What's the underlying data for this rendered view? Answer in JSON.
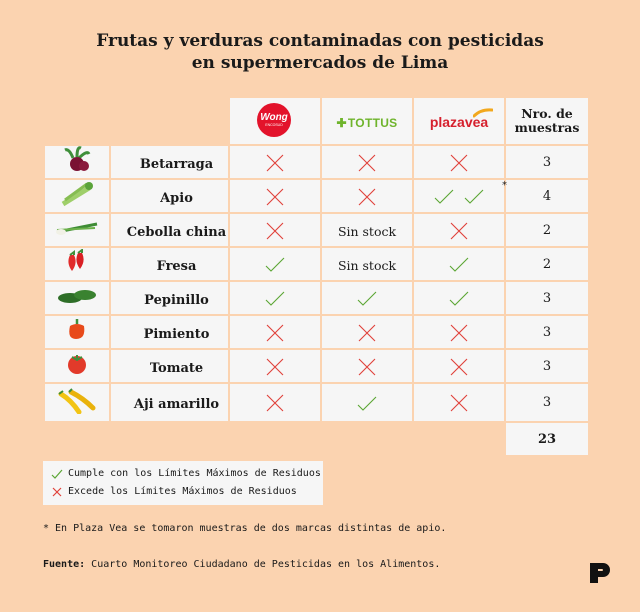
{
  "title": {
    "line1": "Frutas y verduras contaminadas con pesticidas",
    "line2": "en supermercados de Lima"
  },
  "table": {
    "stores": [
      {
        "name": "Wong",
        "logo_text": "Wong",
        "logo_sub": "ENCOSUD"
      },
      {
        "name": "Tottus",
        "logo_text": "TOTTUS"
      },
      {
        "name": "Plaza Vea",
        "logo_text": "plazavea"
      }
    ],
    "count_header_line1": "Nro. de",
    "count_header_line2": "muestras",
    "rows": [
      {
        "product": "Betarraga",
        "icon": "beet-icon",
        "wong": "x",
        "tottus": "x",
        "plazavea": "x",
        "count": "3"
      },
      {
        "product": "Apio",
        "icon": "celery-icon",
        "wong": "x",
        "tottus": "x",
        "plazavea": "check2",
        "count": "4",
        "star": "*"
      },
      {
        "product": "Cebolla china",
        "icon": "green-onion-icon",
        "wong": "x",
        "tottus": "Sin stock",
        "plazavea": "x",
        "count": "2"
      },
      {
        "product": "Fresa",
        "icon": "strawberry-icon",
        "wong": "check",
        "tottus": "Sin stock",
        "plazavea": "check",
        "count": "2"
      },
      {
        "product": "Pepinillo",
        "icon": "cucumber-icon",
        "wong": "check",
        "tottus": "check",
        "plazavea": "check",
        "count": "3"
      },
      {
        "product": "Pimiento",
        "icon": "bell-pepper-icon",
        "wong": "x",
        "tottus": "x",
        "plazavea": "x",
        "count": "3"
      },
      {
        "product": "Tomate",
        "icon": "tomato-icon",
        "wong": "x",
        "tottus": "x",
        "plazavea": "x",
        "count": "3"
      },
      {
        "product": "Aji amarillo",
        "icon": "yellow-chili-icon",
        "wong": "x",
        "tottus": "check",
        "plazavea": "x",
        "count": "3"
      }
    ],
    "total": "23"
  },
  "legend": {
    "check_label": "Cumple con los Límites Máximos de Residuos",
    "x_label": "Excede los Límites Máximos de Residuos"
  },
  "note": "* En Plaza Vea se tomaron muestras de dos marcas distintas de apio.",
  "source": {
    "label": "Fuente:",
    "text": " Cuarto Monitoreo Ciudadano de Pesticidas en los Alimentos."
  },
  "colors": {
    "background": "#fbd3b0",
    "cell": "#f6f6f6",
    "x_mark": "#e0413a",
    "check_mark": "#5ba634"
  }
}
